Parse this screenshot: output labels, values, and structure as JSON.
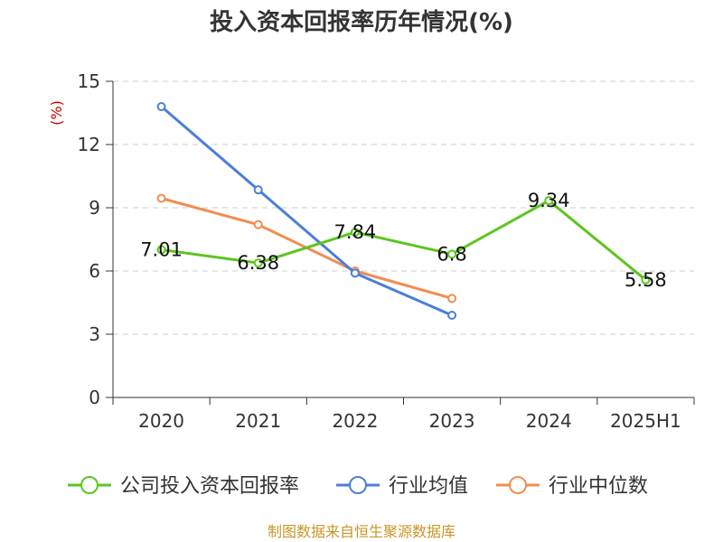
{
  "chart_data": {
    "type": "line",
    "title": "投入资本回报率历年情况(%)",
    "ylabel": "(%)",
    "xlabel": "",
    "categories": [
      "2020",
      "2021",
      "2022",
      "2023",
      "2024",
      "2025H1"
    ],
    "yticks": [
      "0",
      "3",
      "6",
      "9",
      "12",
      "15"
    ],
    "ylim": [
      0,
      15
    ],
    "grid": true,
    "legend_position": "bottom",
    "series": [
      {
        "name": "公司投入资本回报率",
        "color": "#5cc51f",
        "values": [
          7.01,
          6.38,
          7.84,
          6.8,
          9.34,
          5.58
        ],
        "labels": [
          "7.01",
          "6.38",
          "7.84",
          "6.8",
          "9.34",
          "5.58"
        ]
      },
      {
        "name": "行业均值",
        "color": "#4a7fd8",
        "values": [
          13.8,
          9.85,
          5.9,
          3.9,
          null,
          null
        ]
      },
      {
        "name": "行业中位数",
        "color": "#f28c50",
        "values": [
          9.45,
          8.2,
          6.0,
          4.7,
          null,
          null
        ]
      }
    ]
  },
  "source": "制图数据来自恒生聚源数据库"
}
